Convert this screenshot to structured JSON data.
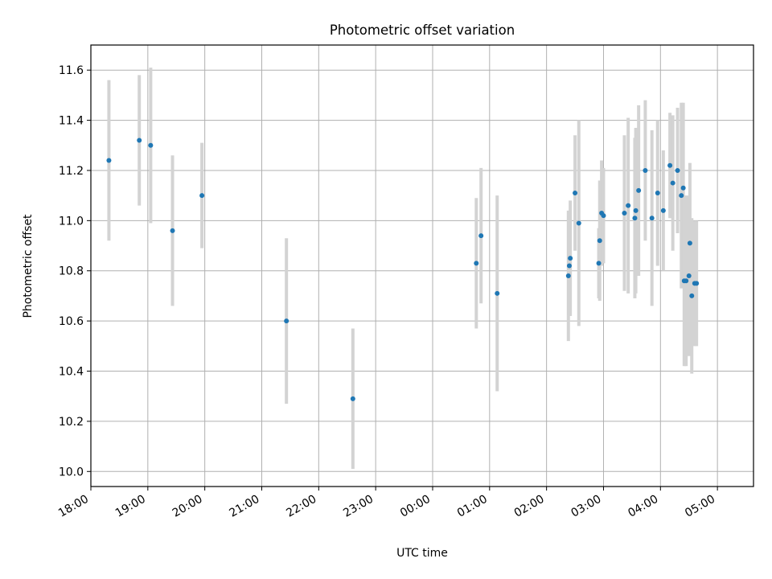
{
  "chart_data": {
    "type": "scatter",
    "title": "Photometric offset variation",
    "xlabel": "UTC time",
    "ylabel": "Photometric offset",
    "xlim": [
      "18:00",
      "05:38"
    ],
    "ylim": [
      9.94,
      11.7
    ],
    "x_tick_labels": [
      "18:00",
      "19:00",
      "20:00",
      "21:00",
      "22:00",
      "23:00",
      "00:00",
      "01:00",
      "02:00",
      "03:00",
      "04:00",
      "05:00"
    ],
    "y_ticks": [
      10.0,
      10.2,
      10.4,
      10.6,
      10.8,
      11.0,
      11.2,
      11.4,
      11.6
    ],
    "y_tick_labels": [
      "10.0",
      "10.2",
      "10.4",
      "10.6",
      "10.8",
      "11.0",
      "11.2",
      "11.4",
      "11.6"
    ],
    "grid": true,
    "colors": {
      "point": "#1f77b4",
      "errorbar": "#d3d3d3",
      "grid": "#b0b0b0"
    },
    "series": [
      {
        "x": [
          "18:19",
          "18:51",
          "19:03",
          "19:26",
          "19:57",
          "21:26",
          "22:36",
          "00:46",
          "00:51",
          "01:08",
          "02:23",
          "02:24",
          "02:25",
          "02:30",
          "02:34",
          "02:55",
          "02:56",
          "02:58",
          "03:00",
          "03:22",
          "03:26",
          "03:33",
          "03:34",
          "03:37",
          "03:44",
          "03:51",
          "03:57",
          "04:03",
          "04:10",
          "04:13",
          "04:18",
          "04:22",
          "04:24",
          "04:25",
          "04:27",
          "04:30",
          "04:31",
          "04:33",
          "04:36",
          "04:38"
        ],
        "y": [
          11.24,
          11.32,
          11.3,
          10.96,
          11.1,
          10.6,
          10.29,
          10.83,
          10.94,
          10.71,
          10.78,
          10.82,
          10.85,
          11.11,
          10.99,
          10.83,
          10.92,
          11.03,
          11.02,
          11.03,
          11.06,
          11.01,
          11.04,
          11.12,
          11.2,
          11.01,
          11.11,
          11.04,
          11.22,
          11.15,
          11.2,
          11.1,
          11.13,
          10.76,
          10.76,
          10.78,
          10.91,
          10.7,
          10.75,
          10.75
        ],
        "yerr": [
          0.32,
          0.26,
          0.31,
          0.3,
          0.21,
          0.33,
          0.28,
          0.26,
          0.27,
          0.39,
          0.26,
          0.2,
          0.23,
          0.23,
          0.41,
          0.14,
          0.24,
          0.21,
          0.19,
          0.31,
          0.35,
          0.32,
          0.33,
          0.34,
          0.28,
          0.35,
          0.29,
          0.24,
          0.21,
          0.27,
          0.25,
          0.37,
          0.34,
          0.34,
          0.34,
          0.32,
          0.32,
          0.31,
          0.25,
          0.25
        ]
      }
    ]
  }
}
